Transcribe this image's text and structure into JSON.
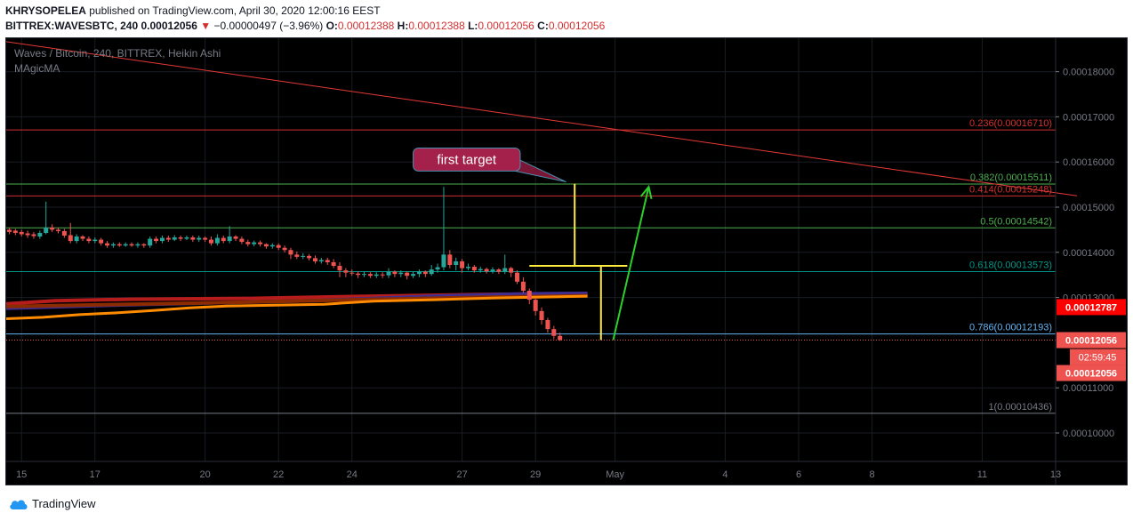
{
  "header": {
    "publisher": "KHRYSOPELEA",
    "published_text": "published on TradingView.com, April 30, 2020 12:00:16 EEST",
    "symbol": "BITTREX:WAVESBTC, 240",
    "last": "0.00012056",
    "change": "−0.00000497 (−3.96%)",
    "o_label": "O:",
    "o_value": "0.00012388",
    "h_label": "H:",
    "h_value": "0.00012388",
    "l_label": "L:",
    "l_value": "0.00012056",
    "c_label": "C:",
    "c_value": "0.00012056"
  },
  "legend": {
    "title": "Waves / Bitcoin, 240, BITTREX, Heikin Ashi",
    "indicator": "MAgicMA"
  },
  "annotation": {
    "text": "first target"
  },
  "footer": {
    "brand": "TradingView"
  },
  "colors": {
    "up": "#26a69a",
    "down": "#ef5350",
    "bg": "#000000",
    "fib_red": "#d32f2f",
    "fib_green": "#4caf50",
    "fib_teal": "#009688",
    "fib_blue": "#64b5f6",
    "fib_grey": "#787b86",
    "callout": "#a3214a",
    "target_yellow": "#ffeb3b",
    "arrow_green": "#2bd12b"
  },
  "chart_data": {
    "type": "candlestick",
    "title": "Waves / Bitcoin, 240, BITTREX, Heikin Ashi",
    "y_ticks": [
      0.00018,
      0.00017,
      0.00016,
      0.00015,
      0.00014,
      0.00013,
      0.00011,
      0.0001
    ],
    "y_tick_labels": [
      "0.00018000",
      "0.00017000",
      "0.00016000",
      "0.00015000",
      "0.00014000",
      "0.00013000",
      "0.00011000",
      "0.00010000"
    ],
    "x_tick_labels": [
      "15",
      "17",
      "20",
      "22",
      "24",
      "27",
      "29",
      "May",
      "4",
      "6",
      "8",
      "11",
      "13"
    ],
    "fib_levels": [
      {
        "label": "0.236(0.00016710)",
        "value": 0.0001671,
        "color": "red"
      },
      {
        "label": "0.382(0.00015511)",
        "value": 0.00015511,
        "color": "green"
      },
      {
        "label": "0.414(0.00015248)",
        "value": 0.00015248,
        "color": "red"
      },
      {
        "label": "0.5(0.00014542)",
        "value": 0.00014542,
        "color": "green"
      },
      {
        "label": "0.618(0.00013573)",
        "value": 0.00013573,
        "color": "teal"
      },
      {
        "label": "0.786(0.00012193)",
        "value": 0.00012193,
        "color": "blue"
      },
      {
        "label": "1(0.00010436)",
        "value": 0.00010436,
        "color": "grey"
      }
    ],
    "price_badges": [
      {
        "text": "0.00012787",
        "value": 0.00012787,
        "color": "#ff0000"
      },
      {
        "text": "0.00012056",
        "value": 0.00012056,
        "color": "#ef5350"
      }
    ],
    "countdown": "02:59:45",
    "countdown_price": "0.00012056",
    "candles": [
      [
        0.000145,
        0.0001445,
        0.0001455,
        0.000144
      ],
      [
        0.0001448,
        0.0001443,
        0.0001452,
        0.0001438
      ],
      [
        0.0001445,
        0.000144,
        0.000145,
        0.0001435
      ],
      [
        0.0001442,
        0.0001438,
        0.0001448,
        0.0001432
      ],
      [
        0.000144,
        0.0001436,
        0.0001445,
        0.000143
      ],
      [
        0.0001435,
        0.0001443,
        0.0001448,
        0.000143
      ],
      [
        0.0001443,
        0.0001455,
        0.0001512,
        0.000144
      ],
      [
        0.0001455,
        0.000145,
        0.0001462,
        0.0001445
      ],
      [
        0.000145,
        0.0001447,
        0.0001455,
        0.0001442
      ],
      [
        0.0001447,
        0.0001437,
        0.0001452,
        0.0001432
      ],
      [
        0.0001438,
        0.0001425,
        0.0001465,
        0.000142
      ],
      [
        0.0001425,
        0.0001435,
        0.000144,
        0.000142
      ],
      [
        0.0001435,
        0.000143,
        0.0001438,
        0.0001425
      ],
      [
        0.000143,
        0.0001425,
        0.0001435,
        0.000142
      ],
      [
        0.0001425,
        0.0001428,
        0.0001433,
        0.000142
      ],
      [
        0.0001428,
        0.000142,
        0.0001432,
        0.0001415
      ],
      [
        0.000142,
        0.0001415,
        0.0001425,
        0.000141
      ],
      [
        0.0001415,
        0.0001418,
        0.0001422,
        0.000141
      ],
      [
        0.0001418,
        0.0001415,
        0.0001422,
        0.0001412
      ],
      [
        0.0001415,
        0.0001418,
        0.0001422,
        0.0001412
      ],
      [
        0.0001418,
        0.0001415,
        0.0001422,
        0.0001412
      ],
      [
        0.0001415,
        0.0001418,
        0.0001422,
        0.000141
      ],
      [
        0.0001418,
        0.0001415,
        0.000142,
        0.000141
      ],
      [
        0.0001415,
        0.000143,
        0.0001435,
        0.000141
      ],
      [
        0.000143,
        0.0001425,
        0.0001435,
        0.000142
      ],
      [
        0.0001425,
        0.0001432,
        0.0001437,
        0.000142
      ],
      [
        0.0001432,
        0.0001428,
        0.0001437,
        0.0001423
      ],
      [
        0.0001428,
        0.0001433,
        0.0001438,
        0.0001425
      ],
      [
        0.0001433,
        0.000143,
        0.0001437,
        0.0001425
      ],
      [
        0.000143,
        0.0001433,
        0.0001437,
        0.0001427
      ],
      [
        0.0001433,
        0.0001428,
        0.0001437,
        0.0001423
      ],
      [
        0.0001428,
        0.0001432,
        0.0001437,
        0.0001423
      ],
      [
        0.0001432,
        0.0001428,
        0.0001435,
        0.0001423
      ],
      [
        0.0001428,
        0.000142,
        0.0001435,
        0.0001415
      ],
      [
        0.000142,
        0.0001432,
        0.000144,
        0.0001415
      ],
      [
        0.0001432,
        0.0001425,
        0.0001437,
        0.000142
      ],
      [
        0.0001425,
        0.0001435,
        0.0001458,
        0.000142
      ],
      [
        0.0001435,
        0.000143,
        0.0001438,
        0.0001425
      ],
      [
        0.000143,
        0.0001423,
        0.0001435,
        0.0001418
      ],
      [
        0.0001423,
        0.0001418,
        0.0001428,
        0.0001413
      ],
      [
        0.0001418,
        0.0001422,
        0.0001426,
        0.0001413
      ],
      [
        0.0001422,
        0.0001418,
        0.0001426,
        0.0001413
      ],
      [
        0.0001418,
        0.0001413,
        0.000142,
        0.0001408
      ],
      [
        0.0001413,
        0.0001416,
        0.000142,
        0.0001408
      ],
      [
        0.0001416,
        0.000141,
        0.000142,
        0.0001405
      ],
      [
        0.000141,
        0.0001405,
        0.0001415,
        0.00014
      ],
      [
        0.0001405,
        0.0001395,
        0.000141,
        0.0001385
      ],
      [
        0.0001395,
        0.000139,
        0.0001402,
        0.0001385
      ],
      [
        0.000139,
        0.0001392,
        0.0001398,
        0.0001385
      ],
      [
        0.0001392,
        0.0001387,
        0.0001396,
        0.0001382
      ],
      [
        0.0001387,
        0.000138,
        0.0001393,
        0.0001375
      ],
      [
        0.000138,
        0.0001383,
        0.0001388,
        0.0001375
      ],
      [
        0.0001383,
        0.0001378,
        0.0001388,
        0.0001372
      ],
      [
        0.0001378,
        0.000137,
        0.0001385,
        0.0001365
      ],
      [
        0.000137,
        0.000136,
        0.0001378,
        0.0001345
      ],
      [
        0.000136,
        0.0001355,
        0.0001365,
        0.0001345
      ],
      [
        0.0001355,
        0.0001353,
        0.0001362,
        0.0001348
      ],
      [
        0.0001353,
        0.000135,
        0.0001358,
        0.0001343
      ],
      [
        0.000135,
        0.0001352,
        0.0001357,
        0.0001345
      ],
      [
        0.0001352,
        0.0001348,
        0.0001356,
        0.0001343
      ],
      [
        0.0001348,
        0.0001351,
        0.0001356,
        0.0001343
      ],
      [
        0.0001351,
        0.0001349,
        0.0001356,
        0.0001343
      ],
      [
        0.0001349,
        0.0001357,
        0.0001365,
        0.0001343
      ],
      [
        0.0001357,
        0.0001352,
        0.000136,
        0.0001345
      ],
      [
        0.0001352,
        0.0001355,
        0.000136,
        0.0001345
      ],
      [
        0.0001355,
        0.0001348,
        0.0001358,
        0.000134
      ],
      [
        0.0001348,
        0.0001352,
        0.0001358,
        0.0001343
      ],
      [
        0.0001352,
        0.0001357,
        0.0001362,
        0.0001345
      ],
      [
        0.0001357,
        0.0001352,
        0.000136,
        0.0001345
      ],
      [
        0.0001352,
        0.0001362,
        0.0001372,
        0.0001348
      ],
      [
        0.0001362,
        0.0001367,
        0.0001375,
        0.0001355
      ],
      [
        0.0001367,
        0.0001395,
        0.0001545,
        0.000136
      ],
      [
        0.0001395,
        0.0001372,
        0.0001405,
        0.0001365
      ],
      [
        0.0001372,
        0.000138,
        0.0001388,
        0.000136
      ],
      [
        0.000138,
        0.0001365,
        0.0001385,
        0.0001355
      ],
      [
        0.0001365,
        0.0001368,
        0.0001375,
        0.000136
      ],
      [
        0.0001368,
        0.000136,
        0.0001372,
        0.0001355
      ],
      [
        0.000136,
        0.0001363,
        0.0001368,
        0.0001355
      ],
      [
        0.0001363,
        0.0001358,
        0.0001366,
        0.0001353
      ],
      [
        0.0001358,
        0.0001362,
        0.0001367,
        0.0001353
      ],
      [
        0.0001362,
        0.0001357,
        0.0001365,
        0.0001352
      ],
      [
        0.0001357,
        0.0001365,
        0.0001395,
        0.0001352
      ],
      [
        0.0001365,
        0.0001355,
        0.0001368,
        0.0001345
      ],
      [
        0.0001355,
        0.0001335,
        0.000136,
        0.000133
      ],
      [
        0.0001335,
        0.0001315,
        0.0001345,
        0.000131
      ],
      [
        0.0001315,
        0.0001295,
        0.000132,
        0.0001285
      ],
      [
        0.0001295,
        0.000127,
        0.00013,
        0.000126
      ],
      [
        0.000127,
        0.000125,
        0.0001278,
        0.000124
      ],
      [
        0.000125,
        0.000123,
        0.0001255,
        0.0001222
      ],
      [
        0.000123,
        0.0001215,
        0.0001237,
        0.0001208
      ],
      [
        0.0001215,
        0.0001206,
        0.0001222,
        0.0001204
      ]
    ],
    "ma_series": [
      {
        "name": "ma_red",
        "color": "#b71c1c",
        "points": [
          [
            0,
            0.0001286
          ],
          [
            8,
            0.0001293
          ],
          [
            20,
            0.0001296
          ],
          [
            40,
            0.0001298
          ],
          [
            60,
            0.0001303
          ],
          [
            80,
            0.0001307
          ],
          [
            95,
            0.0001308
          ]
        ]
      },
      {
        "name": "ma_blue",
        "color": "#3f2d8f",
        "points": [
          [
            0,
            0.0001276
          ],
          [
            15,
            0.0001282
          ],
          [
            30,
            0.0001287
          ],
          [
            50,
            0.0001293
          ],
          [
            70,
            0.0001303
          ],
          [
            85,
            0.0001308
          ],
          [
            95,
            0.0001309
          ]
        ]
      },
      {
        "name": "ma_brown",
        "color": "#8d2b00",
        "points": [
          [
            0,
            0.000128
          ],
          [
            20,
            0.0001285
          ],
          [
            40,
            0.000129
          ],
          [
            60,
            0.0001296
          ],
          [
            80,
            0.0001301
          ],
          [
            95,
            0.0001304
          ]
        ]
      },
      {
        "name": "ma_orange",
        "color": "#ff8c00",
        "points": [
          [
            0,
            0.0001253
          ],
          [
            6,
            0.0001256
          ],
          [
            12,
            0.0001262
          ],
          [
            18,
            0.0001266
          ],
          [
            24,
            0.0001271
          ],
          [
            30,
            0.0001277
          ],
          [
            36,
            0.0001281
          ],
          [
            44,
            0.0001283
          ],
          [
            52,
            0.0001285
          ],
          [
            60,
            0.0001292
          ],
          [
            70,
            0.0001295
          ],
          [
            80,
            0.0001299
          ],
          [
            95,
            0.0001303
          ]
        ]
      }
    ],
    "trendline": {
      "from": [
        -30,
        0.0001925
      ],
      "to": [
        175,
        0.0001525
      ]
    },
    "target_lines": [
      {
        "color": "yellow",
        "points": [
          [
            92.9,
            0.0001552
          ],
          [
            92.9,
            0.000137
          ]
        ]
      },
      {
        "color": "yellow",
        "points": [
          [
            85.5,
            0.000137
          ],
          [
            101.5,
            0.000137
          ]
        ]
      },
      {
        "color": "yellow",
        "points": [
          [
            97.2,
            0.000137
          ],
          [
            97.2,
            0.0001206
          ]
        ]
      }
    ],
    "arrow": {
      "from": [
        99.2,
        0.0001206
      ],
      "to": [
        105,
        0.0001545
      ]
    },
    "callout_anchor": [
      91.5,
      0.0001556
    ],
    "callout_box": [
      66.5,
      84,
      0.0001631,
      0.000158
    ],
    "ylim": [
      9.37e-05,
      0.0001874
    ],
    "xlim": [
      0,
      171.5
    ],
    "x_tick_positions": [
      2.5,
      14.5,
      32.5,
      44.5,
      56.5,
      74.5,
      86.5,
      99.5,
      117.5,
      129.5,
      141.5,
      159.5,
      171.5
    ]
  }
}
